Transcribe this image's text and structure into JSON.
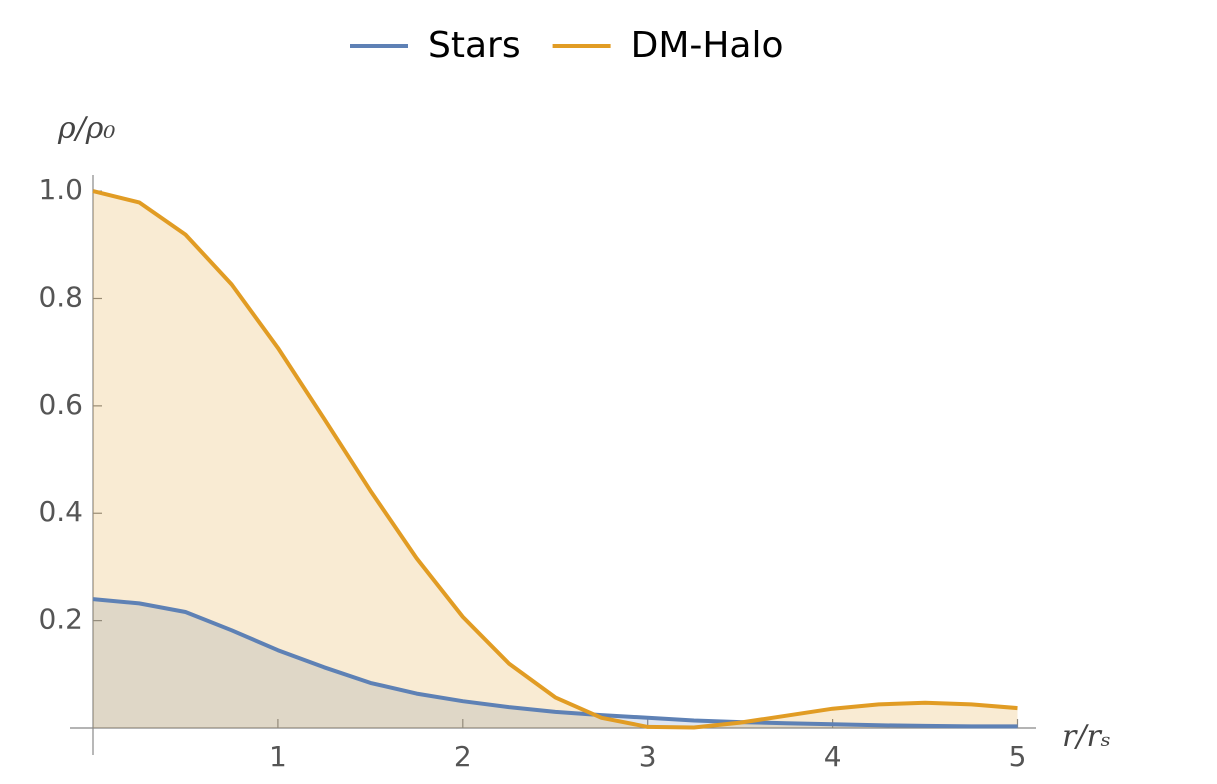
{
  "chart_data": {
    "type": "area",
    "x_label": "r/rₛ",
    "y_label": "ρ/ρ₀",
    "x": [
      0,
      0.25,
      0.5,
      0.75,
      1,
      1.25,
      1.5,
      1.75,
      2,
      2.25,
      2.5,
      2.75,
      3,
      3.25,
      3.5,
      3.75,
      4,
      4.25,
      4.5,
      4.75,
      5
    ],
    "series": [
      {
        "name": "Stars",
        "color": "#5e81b5",
        "values": [
          0.24,
          0.232,
          0.216,
          0.182,
          0.145,
          0.113,
          0.084,
          0.064,
          0.05,
          0.039,
          0.03,
          0.024,
          0.019,
          0.014,
          0.011,
          0.009,
          0.007,
          0.005,
          0.004,
          0.003,
          0.003
        ]
      },
      {
        "name": "DM-Halo",
        "color": "#e19c24",
        "values": [
          1,
          0.979,
          0.919,
          0.826,
          0.708,
          0.576,
          0.442,
          0.316,
          0.207,
          0.12,
          0.057,
          0.019,
          0.002,
          0.001,
          0.01,
          0.023,
          0.036,
          0.044,
          0.047,
          0.044,
          0.037
        ]
      }
    ],
    "xlim": [
      0,
      5.1
    ],
    "ylim": [
      0,
      1.03
    ],
    "xticks": [
      1,
      2,
      3,
      4,
      5
    ],
    "yticks": [
      0.2,
      0.4,
      0.6,
      0.8,
      {
        "value": 1,
        "label": "1.0"
      }
    ],
    "legend": "top"
  }
}
